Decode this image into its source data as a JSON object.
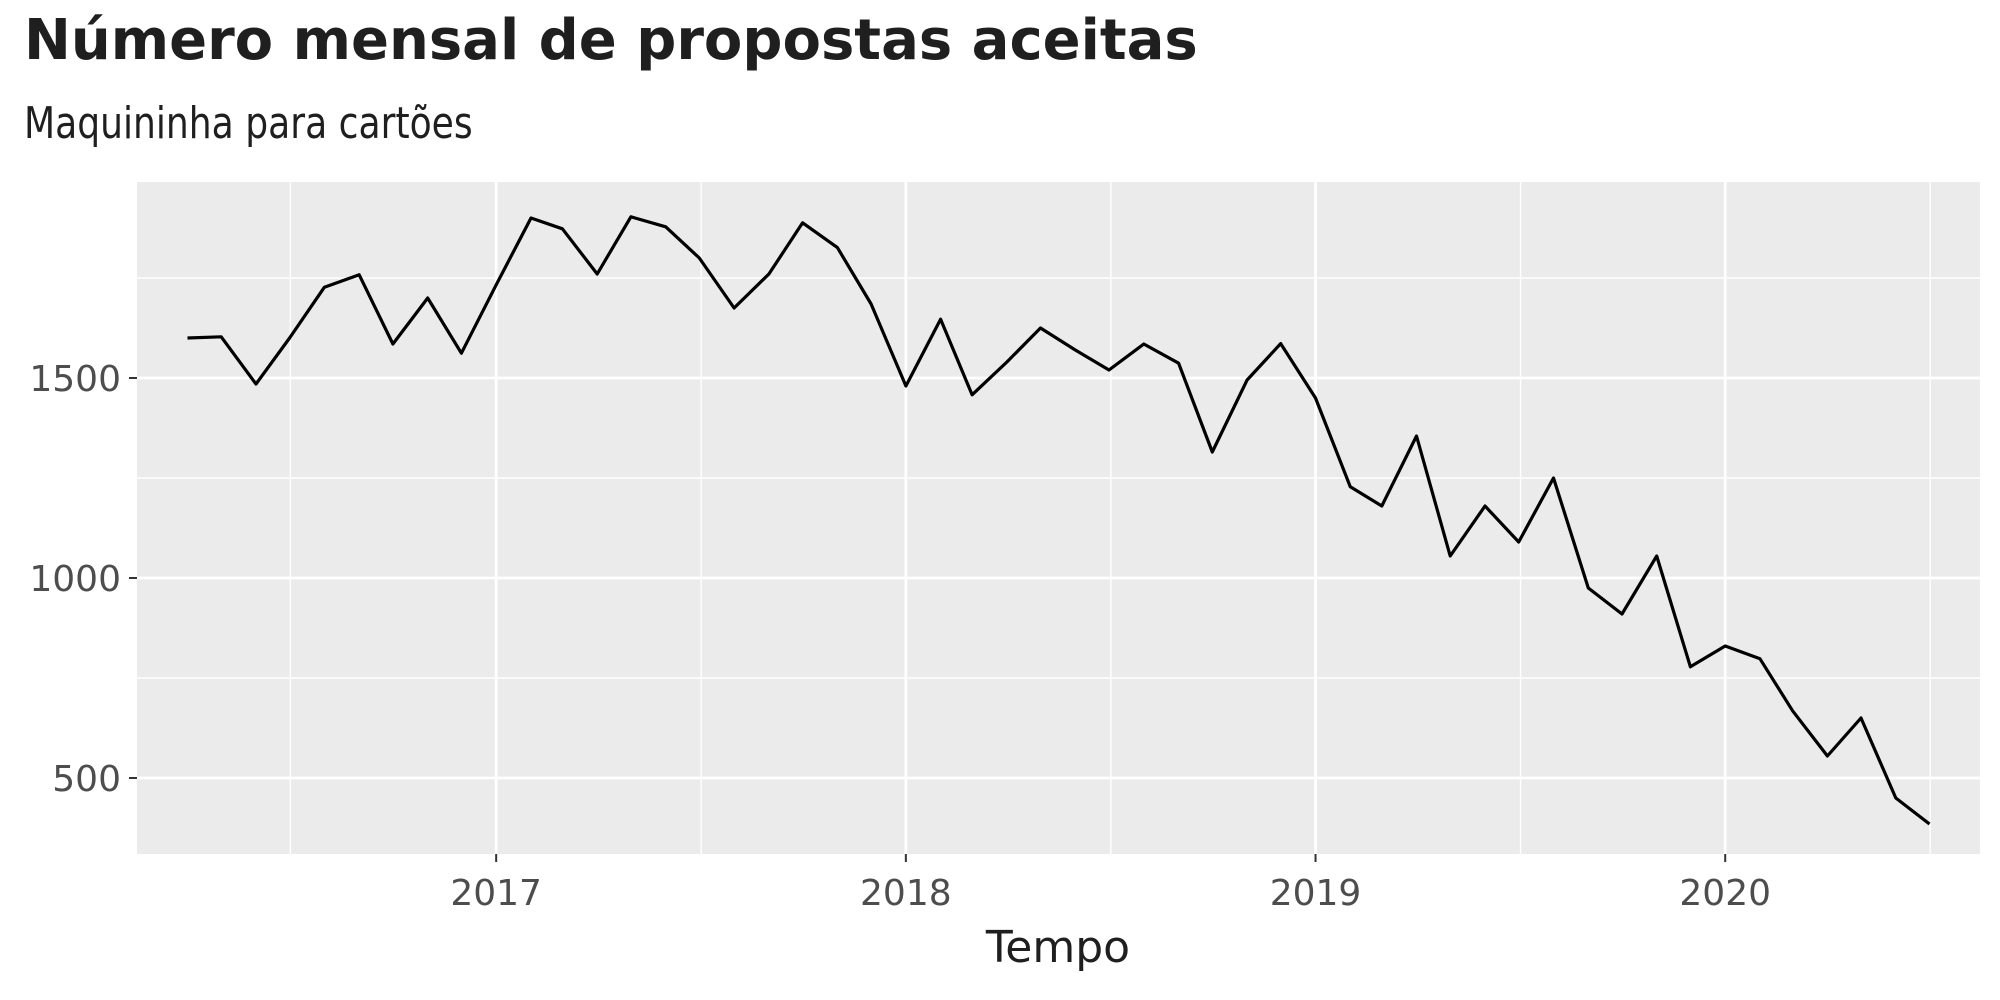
{
  "chart_data": {
    "type": "line",
    "title": "Número mensal de propostas aceitas",
    "subtitle": "Maquininha para cartões",
    "xlabel": "Tempo",
    "ylabel": "",
    "x_axis_type": "date",
    "xlim": [
      "2016-02-16",
      "2020-08-15"
    ],
    "ylim": [
      310,
      1990
    ],
    "x_ticks": [
      "2017",
      "2018",
      "2019",
      "2020"
    ],
    "y_ticks": [
      "500",
      "1000",
      "1500"
    ],
    "grid": true,
    "background": "#EBEBEB",
    "line_color": "#000000",
    "x": [
      "2016-04",
      "2016-05",
      "2016-06",
      "2016-07",
      "2016-08",
      "2016-09",
      "2016-10",
      "2016-11",
      "2016-12",
      "2017-01",
      "2017-02",
      "2017-03",
      "2017-04",
      "2017-05",
      "2017-06",
      "2017-07",
      "2017-08",
      "2017-09",
      "2017-10",
      "2017-11",
      "2017-12",
      "2018-01",
      "2018-02",
      "2018-03",
      "2018-04",
      "2018-05",
      "2018-06",
      "2018-07",
      "2018-08",
      "2018-09",
      "2018-10",
      "2018-11",
      "2018-12",
      "2019-01",
      "2019-02",
      "2019-03",
      "2019-04",
      "2019-05",
      "2019-06",
      "2019-07",
      "2019-08",
      "2019-09",
      "2019-10",
      "2019-11",
      "2019-12",
      "2020-01",
      "2020-02",
      "2020-03",
      "2020-04",
      "2020-05",
      "2020-06",
      "2020-07"
    ],
    "values": [
      1600,
      1603,
      1485,
      1600,
      1727,
      1758,
      1585,
      1700,
      1562,
      1733,
      1900,
      1873,
      1760,
      1903,
      1878,
      1800,
      1675,
      1760,
      1888,
      1826,
      1685,
      1480,
      1647,
      1458,
      1540,
      1625,
      1570,
      1520,
      1585,
      1537,
      1315,
      1495,
      1586,
      1450,
      1228,
      1180,
      1355,
      1055,
      1180,
      1090,
      1250,
      975,
      910,
      1055,
      778,
      830,
      798,
      668,
      555,
      650,
      450,
      385
    ]
  }
}
